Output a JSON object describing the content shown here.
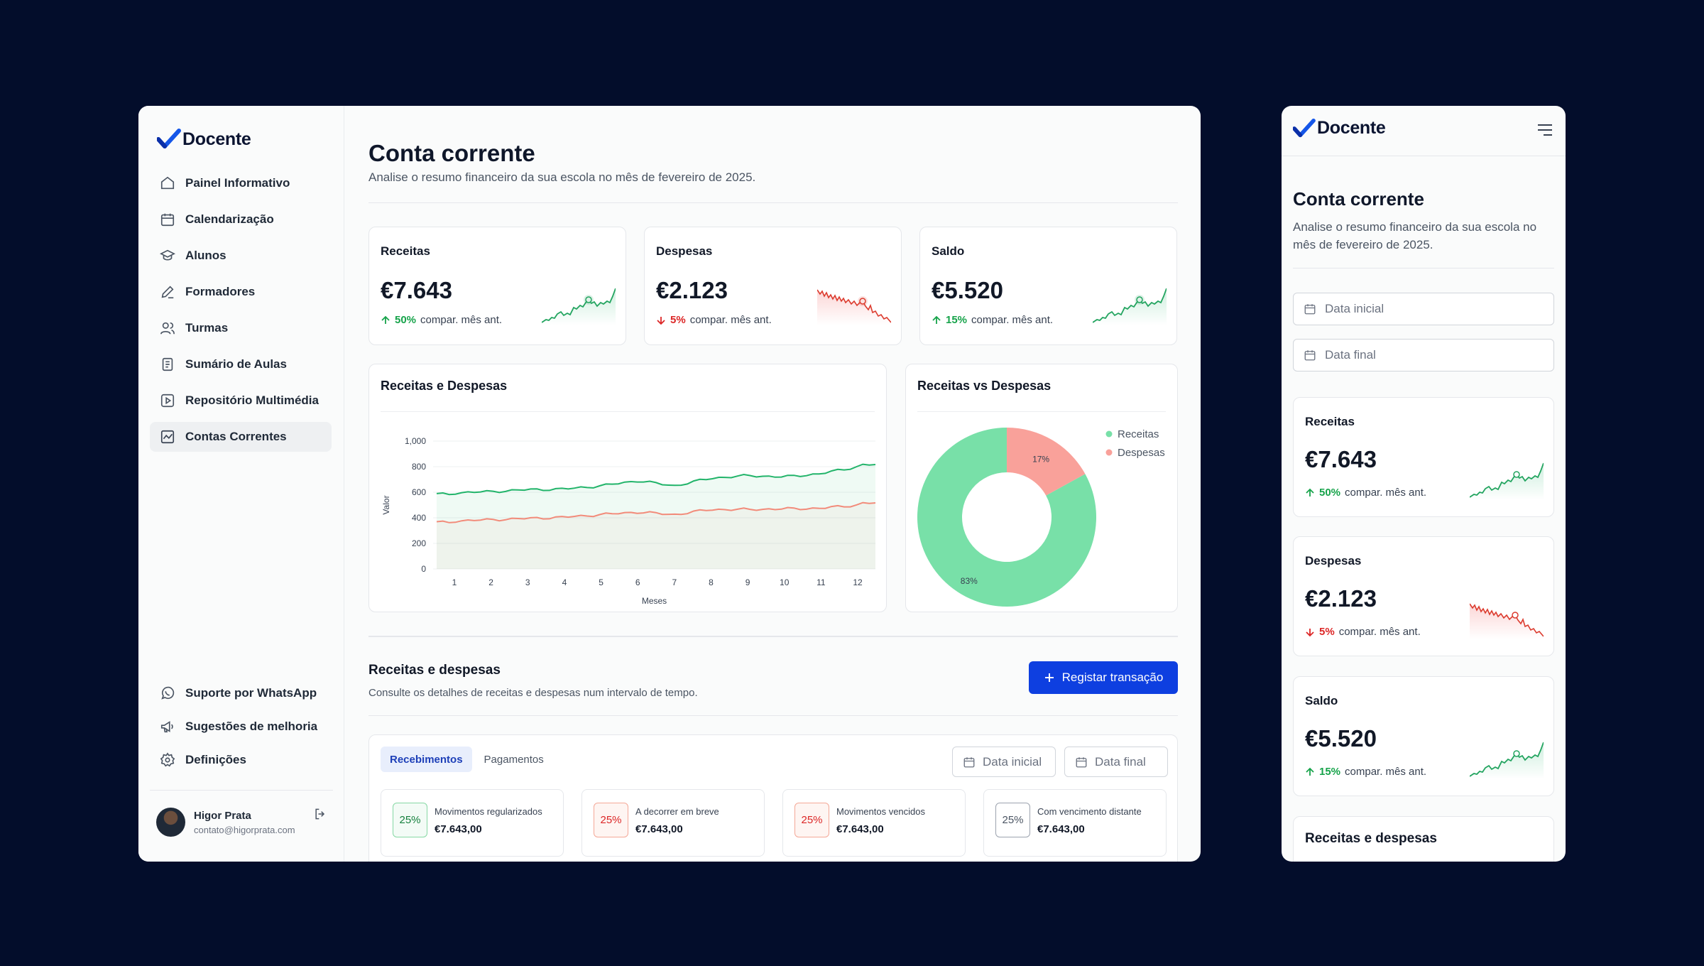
{
  "app": {
    "name": "Docente"
  },
  "colors": {
    "background": "#030d2b",
    "primary": "#0e3fe0",
    "income": "#22b46a",
    "expense": "#f28b7a",
    "donut_income": "#78e0a8",
    "donut_expense": "#f9a19a"
  },
  "sidebar": {
    "items": [
      {
        "label": "Painel Informativo",
        "icon": "home-icon"
      },
      {
        "label": "Calendarização",
        "icon": "calendar-icon"
      },
      {
        "label": "Alunos",
        "icon": "graduation-cap-icon"
      },
      {
        "label": "Formadores",
        "icon": "pen-icon"
      },
      {
        "label": "Turmas",
        "icon": "users-icon"
      },
      {
        "label": "Sumário de Aulas",
        "icon": "document-icon"
      },
      {
        "label": "Repositório Multimédia",
        "icon": "play-icon"
      },
      {
        "label": "Contas Correntes",
        "icon": "chart-icon"
      }
    ],
    "bottom_items": [
      {
        "label": "Suporte por WhatsApp",
        "icon": "whatsapp-icon"
      },
      {
        "label": "Sugestões de melhoria",
        "icon": "megaphone-icon"
      },
      {
        "label": "Definições",
        "icon": "gear-icon"
      }
    ],
    "user": {
      "name": "Higor Prata",
      "email": "contato@higorprata.com"
    }
  },
  "page": {
    "title": "Conta corrente",
    "subtitle": "Analise o resumo financeiro da sua escola no mês de fevereiro de 2025."
  },
  "kpis": [
    {
      "label": "Receitas",
      "value": "€7.643",
      "change": "50%",
      "direction": "up",
      "compare": "compar. mês ant."
    },
    {
      "label": "Despesas",
      "value": "€2.123",
      "change": "5%",
      "direction": "down",
      "compare": "compar. mês ant."
    },
    {
      "label": "Saldo",
      "value": "€5.520",
      "change": "15%",
      "direction": "up",
      "compare": "compar. mês ant."
    }
  ],
  "chart_data": [
    {
      "type": "line",
      "title": "Receitas e Despesas",
      "xlabel": "Meses",
      "ylabel": "Valor",
      "x": [
        1,
        2,
        3,
        4,
        5,
        6,
        7,
        8,
        9,
        10,
        11,
        12
      ],
      "ylim": [
        0,
        1000
      ],
      "yticks": [
        "0",
        "200",
        "400",
        "600",
        "800",
        "1,000"
      ],
      "series": [
        {
          "values": [
            595,
            605,
            620,
            625,
            650,
            690,
            650,
            710,
            730,
            720,
            745,
            800
          ],
          "color": "#22b46a"
        },
        {
          "values": [
            375,
            385,
            395,
            405,
            425,
            445,
            425,
            465,
            465,
            470,
            475,
            500
          ],
          "color": "#f28b7a"
        }
      ],
      "grid": true
    },
    {
      "type": "pie",
      "title": "Receitas vs Despesas",
      "labels": [
        "Receitas",
        "Despesas"
      ],
      "values": [
        83,
        17
      ],
      "value_labels": [
        "83%",
        "17%"
      ],
      "legend": "top-right"
    }
  ],
  "transactions": {
    "title": "Receitas e despesas",
    "subtitle": "Consulte os detalhes de receitas e despesas num intervalo de tempo.",
    "register_button": "Registar transação",
    "tabs": [
      "Recebimentos",
      "Pagamentos"
    ],
    "date_start_placeholder": "Data inicial",
    "date_end_placeholder": "Data final",
    "stats": [
      {
        "badge": "25%",
        "label": "Movimentos regularizados",
        "value": "€7.643,00",
        "tone": "green"
      },
      {
        "badge": "25%",
        "label": "A decorrer em breve",
        "value": "€7.643,00",
        "tone": "red"
      },
      {
        "badge": "25%",
        "label": "Movimentos vencidos",
        "value": "€7.643,00",
        "tone": "red"
      },
      {
        "badge": "25%",
        "label": "Com vencimento distante",
        "value": "€7.643,00",
        "tone": "gray"
      }
    ]
  },
  "mobile": {
    "title": "Conta corrente",
    "subtitle": "Analise o resumo financeiro da sua escola no mês de fevereiro de 2025.",
    "date_start_placeholder": "Data inicial",
    "date_end_placeholder": "Data final",
    "section_title": "Receitas e despesas"
  }
}
